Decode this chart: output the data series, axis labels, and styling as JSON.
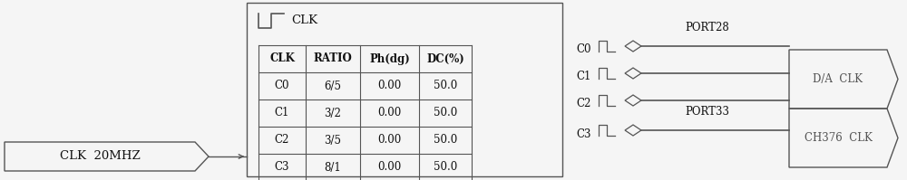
{
  "bg_color": "#f5f5f5",
  "line_color": "#555555",
  "text_color": "#111111",
  "fig_width": 10.0,
  "fig_height": 1.99,
  "clk_input_label": "CLK  20MHZ",
  "clk_signal_label": "CLK",
  "table_headers": [
    "CLK",
    "RATIO",
    "Ph(dg)",
    "DC(%)"
  ],
  "table_rows": [
    [
      "C0",
      "6/5",
      "0.00",
      "50.0"
    ],
    [
      "C1",
      "3/2",
      "0.00",
      "50.0"
    ],
    [
      "C2",
      "3/5",
      "0.00",
      "50.0"
    ],
    [
      "C3",
      "8/1",
      "0.00",
      "50.0"
    ]
  ],
  "output_labels": [
    "C0",
    "C1",
    "C2",
    "C3"
  ],
  "port28_label": "PORT28",
  "port33_label": "PORT33",
  "da_clk_label": "D/A  CLK",
  "ch376_clk_label": "CH376  CLK",
  "font_size_table": 8.5,
  "font_size_label": 9.5
}
